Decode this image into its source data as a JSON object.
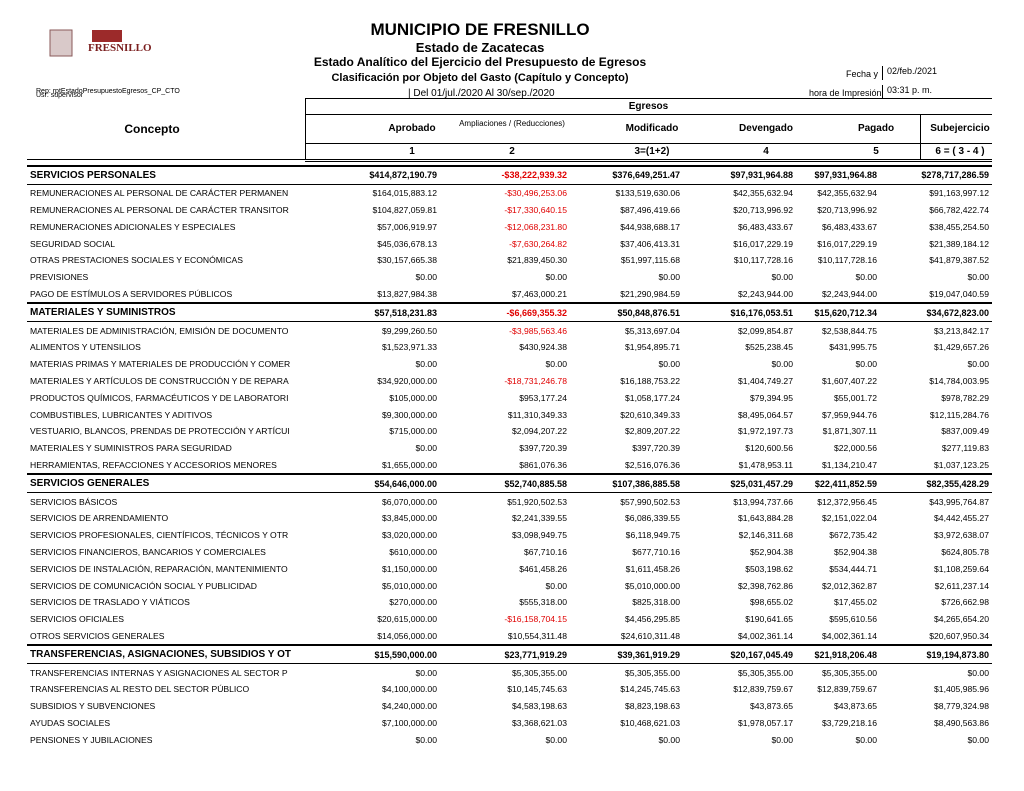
{
  "header": {
    "logo_text": "FRESNILLO",
    "title": "MUNICIPIO DE FRESNILLO",
    "subtitle": "Estado de Zacatecas",
    "report_title": "Estado Analítico del Ejercicio del Presupuesto de Egresos",
    "classification": "Clasificación por Objeto del Gasto (Capítulo y Concepto)",
    "period": "| Del 01/jul./2020 Al 30/sep./2020",
    "report_id": "Rep: rptEstadoPresupuestoEgresos_CP_CTO",
    "user": "Usr: supervisor",
    "date_label": "Fecha y",
    "date": "02/feb./2021",
    "time_label": "hora de Impresión",
    "time": "03:31 p. m."
  },
  "table": {
    "concept_header": "Concepto",
    "group_header": "Egresos",
    "columns": [
      "Aprobado",
      "Ampliaciones / (Reducciones)",
      "Modificado",
      "Devengado",
      "Pagado",
      "Subejercicio"
    ],
    "column_numbers": [
      "1",
      "2",
      "3=(1+2)",
      "4",
      "5",
      "6 = ( 3 - 4 )"
    ],
    "sections": [
      {
        "title": "SERVICIOS PERSONALES",
        "totals": [
          "$414,872,190.79",
          "-$38,222,939.32",
          "$376,649,251.47",
          "$97,931,964.88",
          "$97,931,964.88",
          "$278,717,286.59"
        ],
        "rows": [
          {
            "label": "REMUNERACIONES AL PERSONAL DE CARÁCTER PERMANEN",
            "values": [
              "$164,015,883.12",
              "-$30,496,253.06",
              "$133,519,630.06",
              "$42,355,632.94",
              "$42,355,632.94",
              "$91,163,997.12"
            ]
          },
          {
            "label": "REMUNERACIONES AL PERSONAL DE CARÁCTER TRANSITOR",
            "values": [
              "$104,827,059.81",
              "-$17,330,640.15",
              "$87,496,419.66",
              "$20,713,996.92",
              "$20,713,996.92",
              "$66,782,422.74"
            ]
          },
          {
            "label": "REMUNERACIONES ADICIONALES Y ESPECIALES",
            "values": [
              "$57,006,919.97",
              "-$12,068,231.80",
              "$44,938,688.17",
              "$6,483,433.67",
              "$6,483,433.67",
              "$38,455,254.50"
            ]
          },
          {
            "label": "SEGURIDAD SOCIAL",
            "values": [
              "$45,036,678.13",
              "-$7,630,264.82",
              "$37,406,413.31",
              "$16,017,229.19",
              "$16,017,229.19",
              "$21,389,184.12"
            ]
          },
          {
            "label": "OTRAS PRESTACIONES SOCIALES Y ECONÓMICAS",
            "values": [
              "$30,157,665.38",
              "$21,839,450.30",
              "$51,997,115.68",
              "$10,117,728.16",
              "$10,117,728.16",
              "$41,879,387.52"
            ]
          },
          {
            "label": "PREVISIONES",
            "values": [
              "$0.00",
              "$0.00",
              "$0.00",
              "$0.00",
              "$0.00",
              "$0.00"
            ]
          },
          {
            "label": "PAGO DE ESTÍMULOS A SERVIDORES PÚBLICOS",
            "values": [
              "$13,827,984.38",
              "$7,463,000.21",
              "$21,290,984.59",
              "$2,243,944.00",
              "$2,243,944.00",
              "$19,047,040.59"
            ]
          }
        ]
      },
      {
        "title": "MATERIALES Y SUMINISTROS",
        "totals": [
          "$57,518,231.83",
          "-$6,669,355.32",
          "$50,848,876.51",
          "$16,176,053.51",
          "$15,620,712.34",
          "$34,672,823.00"
        ],
        "rows": [
          {
            "label": "MATERIALES DE ADMINISTRACIÓN, EMISIÓN DE DOCUMENTO",
            "values": [
              "$9,299,260.50",
              "-$3,985,563.46",
              "$5,313,697.04",
              "$2,099,854.87",
              "$2,538,844.75",
              "$3,213,842.17"
            ]
          },
          {
            "label": "ALIMENTOS Y UTENSILIOS",
            "values": [
              "$1,523,971.33",
              "$430,924.38",
              "$1,954,895.71",
              "$525,238.45",
              "$431,995.75",
              "$1,429,657.26"
            ]
          },
          {
            "label": "MATERIAS PRIMAS Y MATERIALES DE PRODUCCIÓN Y COMER",
            "values": [
              "$0.00",
              "$0.00",
              "$0.00",
              "$0.00",
              "$0.00",
              "$0.00"
            ]
          },
          {
            "label": "MATERIALES Y ARTÍCULOS DE CONSTRUCCIÓN Y DE REPARA",
            "values": [
              "$34,920,000.00",
              "-$18,731,246.78",
              "$16,188,753.22",
              "$1,404,749.27",
              "$1,607,407.22",
              "$14,784,003.95"
            ]
          },
          {
            "label": "PRODUCTOS QUÍMICOS, FARMACÉUTICOS Y DE LABORATORI",
            "values": [
              "$105,000.00",
              "$953,177.24",
              "$1,058,177.24",
              "$79,394.95",
              "$55,001.72",
              "$978,782.29"
            ]
          },
          {
            "label": "COMBUSTIBLES, LUBRICANTES Y ADITIVOS",
            "values": [
              "$9,300,000.00",
              "$11,310,349.33",
              "$20,610,349.33",
              "$8,495,064.57",
              "$7,959,944.76",
              "$12,115,284.76"
            ]
          },
          {
            "label": "VESTUARIO, BLANCOS, PRENDAS DE PROTECCIÓN Y ARTÍCUI",
            "values": [
              "$715,000.00",
              "$2,094,207.22",
              "$2,809,207.22",
              "$1,972,197.73",
              "$1,871,307.11",
              "$837,009.49"
            ]
          },
          {
            "label": "MATERIALES Y SUMINISTROS PARA SEGURIDAD",
            "values": [
              "$0.00",
              "$397,720.39",
              "$397,720.39",
              "$120,600.56",
              "$22,000.56",
              "$277,119.83"
            ]
          },
          {
            "label": "HERRAMIENTAS, REFACCIONES Y ACCESORIOS MENORES",
            "values": [
              "$1,655,000.00",
              "$861,076.36",
              "$2,516,076.36",
              "$1,478,953.11",
              "$1,134,210.47",
              "$1,037,123.25"
            ]
          }
        ]
      },
      {
        "title": "SERVICIOS GENERALES",
        "totals": [
          "$54,646,000.00",
          "$52,740,885.58",
          "$107,386,885.58",
          "$25,031,457.29",
          "$22,411,852.59",
          "$82,355,428.29"
        ],
        "rows": [
          {
            "label": "SERVICIOS BÁSICOS",
            "values": [
              "$6,070,000.00",
              "$51,920,502.53",
              "$57,990,502.53",
              "$13,994,737.66",
              "$12,372,956.45",
              "$43,995,764.87"
            ]
          },
          {
            "label": "SERVICIOS DE ARRENDAMIENTO",
            "values": [
              "$3,845,000.00",
              "$2,241,339.55",
              "$6,086,339.55",
              "$1,643,884.28",
              "$2,151,022.04",
              "$4,442,455.27"
            ]
          },
          {
            "label": "SERVICIOS PROFESIONALES, CIENTÍFICOS, TÉCNICOS Y OTR",
            "values": [
              "$3,020,000.00",
              "$3,098,949.75",
              "$6,118,949.75",
              "$2,146,311.68",
              "$672,735.42",
              "$3,972,638.07"
            ]
          },
          {
            "label": "SERVICIOS FINANCIEROS, BANCARIOS Y COMERCIALES",
            "values": [
              "$610,000.00",
              "$67,710.16",
              "$677,710.16",
              "$52,904.38",
              "$52,904.38",
              "$624,805.78"
            ]
          },
          {
            "label": "SERVICIOS DE INSTALACIÓN, REPARACIÓN, MANTENIMIENTO",
            "values": [
              "$1,150,000.00",
              "$461,458.26",
              "$1,611,458.26",
              "$503,198.62",
              "$534,444.71",
              "$1,108,259.64"
            ]
          },
          {
            "label": "SERVICIOS DE COMUNICACIÓN SOCIAL Y PUBLICIDAD",
            "values": [
              "$5,010,000.00",
              "$0.00",
              "$5,010,000.00",
              "$2,398,762.86",
              "$2,012,362.87",
              "$2,611,237.14"
            ]
          },
          {
            "label": "SERVICIOS DE TRASLADO Y VIÁTICOS",
            "values": [
              "$270,000.00",
              "$555,318.00",
              "$825,318.00",
              "$98,655.02",
              "$17,455.02",
              "$726,662.98"
            ]
          },
          {
            "label": "SERVICIOS OFICIALES",
            "values": [
              "$20,615,000.00",
              "-$16,158,704.15",
              "$4,456,295.85",
              "$190,641.65",
              "$595,610.56",
              "$4,265,654.20"
            ]
          },
          {
            "label": "OTROS SERVICIOS GENERALES",
            "values": [
              "$14,056,000.00",
              "$10,554,311.48",
              "$24,610,311.48",
              "$4,002,361.14",
              "$4,002,361.14",
              "$20,607,950.34"
            ]
          }
        ]
      },
      {
        "title": "TRANSFERENCIAS, ASIGNACIONES, SUBSIDIOS Y OT",
        "totals": [
          "$15,590,000.00",
          "$23,771,919.29",
          "$39,361,919.29",
          "$20,167,045.49",
          "$21,918,206.48",
          "$19,194,873.80"
        ],
        "rows": [
          {
            "label": "TRANSFERENCIAS INTERNAS Y ASIGNACIONES AL SECTOR P",
            "values": [
              "$0.00",
              "$5,305,355.00",
              "$5,305,355.00",
              "$5,305,355.00",
              "$5,305,355.00",
              "$0.00"
            ]
          },
          {
            "label": "TRANSFERENCIAS AL RESTO DEL SECTOR PÚBLICO",
            "values": [
              "$4,100,000.00",
              "$10,145,745.63",
              "$14,245,745.63",
              "$12,839,759.67",
              "$12,839,759.67",
              "$1,405,985.96"
            ]
          },
          {
            "label": "SUBSIDIOS Y SUBVENCIONES",
            "values": [
              "$4,240,000.00",
              "$4,583,198.63",
              "$8,823,198.63",
              "$43,873.65",
              "$43,873.65",
              "$8,779,324.98"
            ]
          },
          {
            "label": "AYUDAS SOCIALES",
            "values": [
              "$7,100,000.00",
              "$3,368,621.03",
              "$10,468,621.03",
              "$1,978,057.17",
              "$3,729,218.16",
              "$8,490,563.86"
            ]
          },
          {
            "label": "PENSIONES Y JUBILACIONES",
            "values": [
              "$0.00",
              "$0.00",
              "$0.00",
              "$0.00",
              "$0.00",
              "$0.00"
            ]
          }
        ]
      }
    ]
  }
}
